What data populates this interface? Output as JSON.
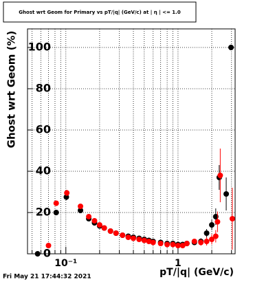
{
  "chart_data": {
    "type": "scatter",
    "title": "Ghost wrt Geom for Primary vs pT/|q| (GeV/c) at | η | <= 1.0",
    "x_label": "pT/|q| (GeV/c)",
    "y_label": "Ghost wrt Geom (%)",
    "timestamp": "Fri May 21 17:44:32 2021",
    "xscale": "log",
    "xlim": [
      0.0455,
      3.23
    ],
    "ylim": [
      0,
      109
    ],
    "xticks": [
      {
        "value": 0.1,
        "label": "10⁻¹"
      },
      1
    ],
    "xminorticks": [
      0.05,
      0.06,
      0.07,
      0.08,
      0.09,
      0.2,
      0.3,
      0.4,
      0.5,
      0.6,
      0.7,
      0.8,
      0.9,
      2,
      3
    ],
    "yticks": [
      0,
      20,
      40,
      60,
      80,
      100
    ],
    "grid": true,
    "series": [
      {
        "color": "#000000",
        "x": [
          0.056,
          0.082,
          0.101,
          0.135,
          0.16,
          0.18,
          0.2,
          0.22,
          0.25,
          0.28,
          0.32,
          0.36,
          0.4,
          0.45,
          0.5,
          0.55,
          0.6,
          0.7,
          0.8,
          0.9,
          1.0,
          1.1,
          1.2,
          1.4,
          1.6,
          1.8,
          2.0,
          2.17,
          2.33,
          2.69,
          2.97
        ],
        "values": [
          0,
          20,
          27.5,
          21,
          17,
          15,
          13.5,
          12.5,
          11,
          10,
          9,
          8.5,
          8,
          7.5,
          7,
          6.5,
          6,
          5.5,
          5,
          5,
          4.5,
          4.5,
          5,
          5.5,
          6,
          10,
          14,
          18,
          37,
          29,
          100
        ],
        "errors": [
          0.5,
          1,
          1.5,
          1,
          1,
          1,
          0.8,
          0.8,
          0.7,
          0.7,
          0.6,
          0.6,
          0.6,
          0.6,
          0.6,
          0.6,
          0.6,
          0.6,
          0.6,
          0.7,
          0.7,
          0.8,
          1,
          1,
          1.5,
          2,
          2.5,
          4,
          6,
          8,
          1
        ]
      },
      {
        "color": "#ff0000",
        "x": [
          0.07,
          0.082,
          0.102,
          0.135,
          0.16,
          0.18,
          0.2,
          0.22,
          0.25,
          0.28,
          0.32,
          0.36,
          0.4,
          0.45,
          0.5,
          0.55,
          0.6,
          0.7,
          0.8,
          0.9,
          1.0,
          1.1,
          1.2,
          1.4,
          1.6,
          1.8,
          2.0,
          2.17,
          2.25,
          2.38,
          3.05
        ],
        "values": [
          4,
          24.5,
          29.5,
          23,
          18,
          16,
          14,
          12.5,
          11,
          10,
          9,
          8,
          7.5,
          7,
          6.5,
          6,
          5.5,
          5,
          4.5,
          4.5,
          4,
          4,
          5,
          6,
          5.5,
          6,
          7,
          8.5,
          15.5,
          38,
          17
        ],
        "errors": [
          0.8,
          1.2,
          1.5,
          1.2,
          1,
          1,
          0.8,
          0.8,
          0.7,
          0.7,
          0.6,
          0.6,
          0.6,
          0.6,
          0.6,
          0.6,
          0.6,
          0.6,
          0.6,
          0.7,
          0.7,
          0.8,
          1,
          1.2,
          1.5,
          2,
          2.5,
          3,
          5,
          13,
          15
        ]
      }
    ]
  }
}
